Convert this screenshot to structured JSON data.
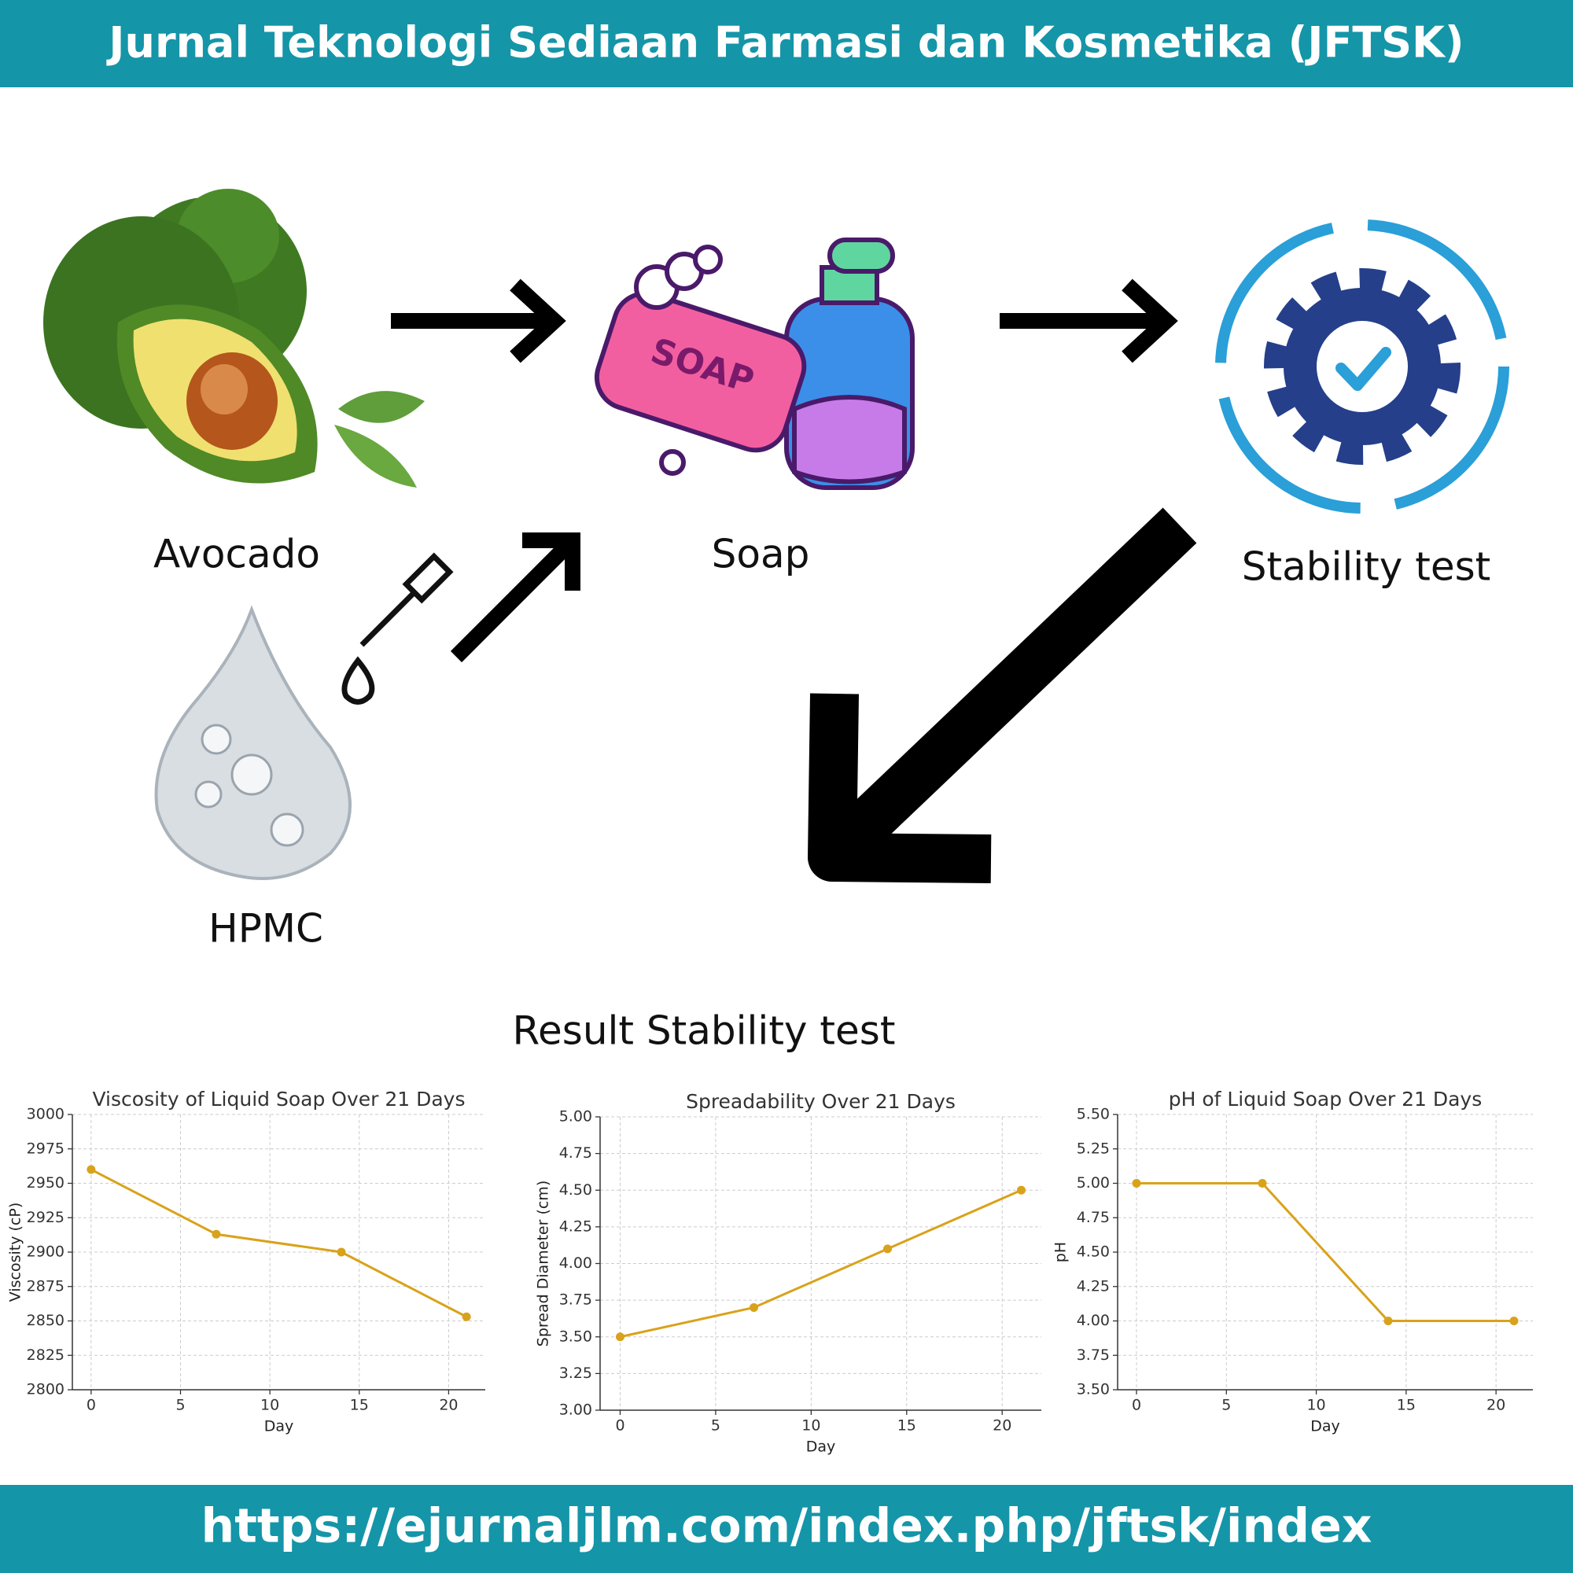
{
  "header": {
    "title": "Jurnal Teknologi Sediaan Farmasi dan Kosmetika (JFTSK)"
  },
  "diagram": {
    "nodes": [
      {
        "label": "Avocado"
      },
      {
        "label": "Soap"
      },
      {
        "label": "Stability test"
      },
      {
        "label": "HPMC"
      }
    ]
  },
  "results_title": "Result Stability test",
  "chart_data": [
    {
      "type": "line",
      "title": "Viscosity of Liquid Soap Over 21 Days",
      "x_label": "Day",
      "y_label": "Viscosity (cP)",
      "x": [
        0,
        7,
        14,
        21
      ],
      "values": [
        2960,
        2913,
        2900,
        2853
      ],
      "color": "#d9a21b",
      "xlim": [
        -1.05,
        22.05
      ],
      "xticks": [
        0,
        5,
        10,
        15,
        20
      ],
      "ylim": [
        2800,
        3000
      ],
      "yticks": [
        2800,
        2825,
        2850,
        2875,
        2900,
        2925,
        2950,
        2975,
        3000
      ],
      "grid": true
    },
    {
      "type": "line",
      "title": "Spreadability Over 21 Days",
      "x_label": "Day",
      "y_label": "Spread Diameter (cm)",
      "x": [
        0,
        7,
        14,
        21
      ],
      "values": [
        3.5,
        3.7,
        4.1,
        4.5
      ],
      "color": "#d9a21b",
      "xlim": [
        -1.05,
        22.05
      ],
      "xticks": [
        0,
        5,
        10,
        15,
        20
      ],
      "ylim": [
        3.0,
        5.0
      ],
      "yticks": [
        {
          "value": 3.0,
          "label": "3.00"
        },
        {
          "value": 3.25,
          "label": "3.25"
        },
        {
          "value": 3.5,
          "label": "3.50"
        },
        {
          "value": 3.75,
          "label": "3.75"
        },
        {
          "value": 4.0,
          "label": "4.00"
        },
        {
          "value": 4.25,
          "label": "4.25"
        },
        {
          "value": 4.5,
          "label": "4.50"
        },
        {
          "value": 4.75,
          "label": "4.75"
        },
        {
          "value": 5.0,
          "label": "5.00"
        }
      ],
      "grid": true
    },
    {
      "type": "line",
      "title": "pH of Liquid Soap Over 21 Days",
      "x_label": "Day",
      "y_label": "pH",
      "x": [
        0,
        7,
        14,
        21
      ],
      "values": [
        5.0,
        5.0,
        4.0,
        4.0
      ],
      "color": "#d9a21b",
      "xlim": [
        -1.05,
        22.05
      ],
      "xticks": [
        0,
        5,
        10,
        15,
        20
      ],
      "ylim": [
        3.5,
        5.5
      ],
      "yticks": [
        {
          "value": 3.5,
          "label": "3.50"
        },
        {
          "value": 3.75,
          "label": "3.75"
        },
        {
          "value": 4.0,
          "label": "4.00"
        },
        {
          "value": 4.25,
          "label": "4.25"
        },
        {
          "value": 4.5,
          "label": "4.50"
        },
        {
          "value": 4.75,
          "label": "4.75"
        },
        {
          "value": 5.0,
          "label": "5.00"
        },
        {
          "value": 5.25,
          "label": "5.25"
        },
        {
          "value": 5.5,
          "label": "5.50"
        }
      ],
      "grid": true
    }
  ],
  "footer": {
    "url": "https://ejurnaljlm.com/index.php/jftsk/index"
  }
}
